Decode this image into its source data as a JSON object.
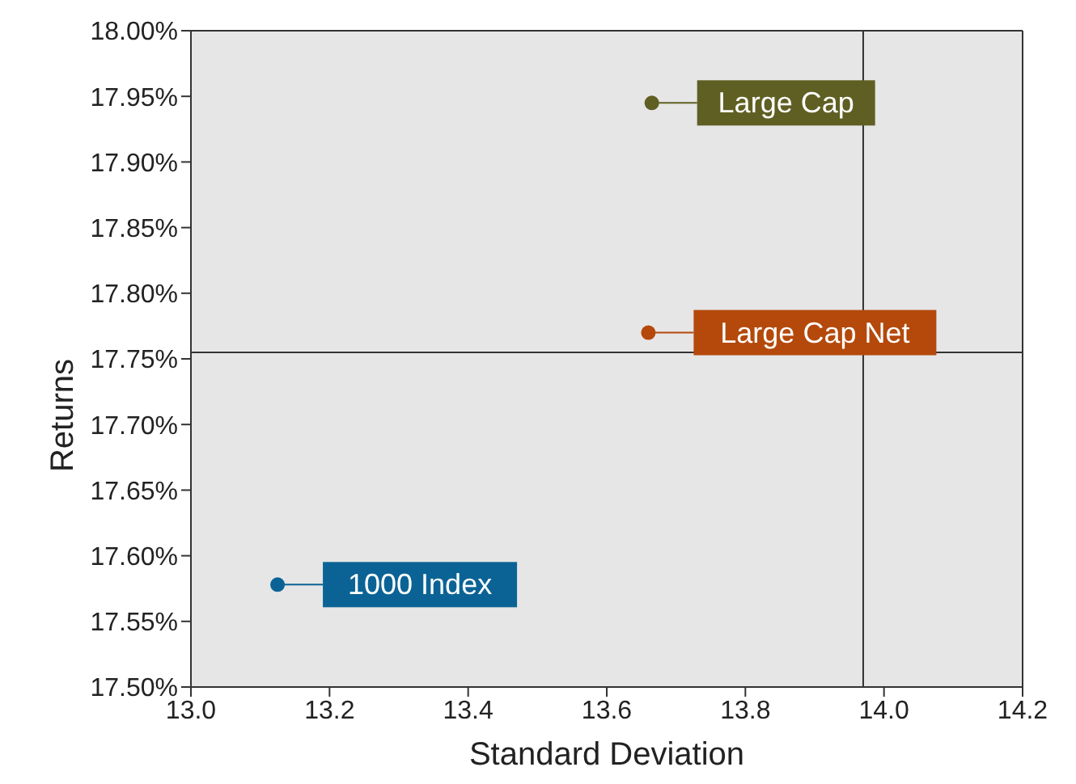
{
  "chart_data": {
    "type": "scatter",
    "xlabel": "Standard Deviation",
    "ylabel": "Returns",
    "xlim": [
      13.0,
      14.2
    ],
    "xticks": [
      {
        "value": 13.0,
        "label": "13.0"
      },
      {
        "value": 13.2,
        "label": "13.2"
      },
      {
        "value": 13.4,
        "label": "13.4"
      },
      {
        "value": 13.6,
        "label": "13.6"
      },
      {
        "value": 13.8,
        "label": "13.8"
      },
      {
        "value": 14.0,
        "label": "14.0"
      },
      {
        "value": 14.2,
        "label": "14.2"
      }
    ],
    "ylim": [
      17.5,
      18.0
    ],
    "yticks": [
      {
        "value": 17.5,
        "label": "17.50%"
      },
      {
        "value": 17.55,
        "label": "17.55%"
      },
      {
        "value": 17.6,
        "label": "17.60%"
      },
      {
        "value": 17.65,
        "label": "17.65%"
      },
      {
        "value": 17.7,
        "label": "17.70%"
      },
      {
        "value": 17.75,
        "label": "17.75%"
      },
      {
        "value": 17.8,
        "label": "17.80%"
      },
      {
        "value": 17.85,
        "label": "17.85%"
      },
      {
        "value": 17.9,
        "label": "17.90%"
      },
      {
        "value": 17.95,
        "label": "17.95%"
      },
      {
        "value": 18.0,
        "label": "18.00%"
      }
    ],
    "series": [
      {
        "name": "Large Cap",
        "color": "#5f5f23",
        "x": [
          13.665
        ],
        "values": [
          17.945
        ]
      },
      {
        "name": "Large Cap Net",
        "color": "#b4490b",
        "x": [
          13.66
        ],
        "values": [
          17.77
        ]
      },
      {
        "name": "1000 Index",
        "color": "#0b6395",
        "x": [
          13.125
        ],
        "values": [
          17.578
        ]
      }
    ],
    "ref_lines": [
      {
        "axis": "x",
        "value": 13.97,
        "color": "#333333"
      },
      {
        "axis": "y",
        "value": 17.755,
        "color": "#333333"
      }
    ],
    "legend": "right",
    "marker": "circle"
  }
}
